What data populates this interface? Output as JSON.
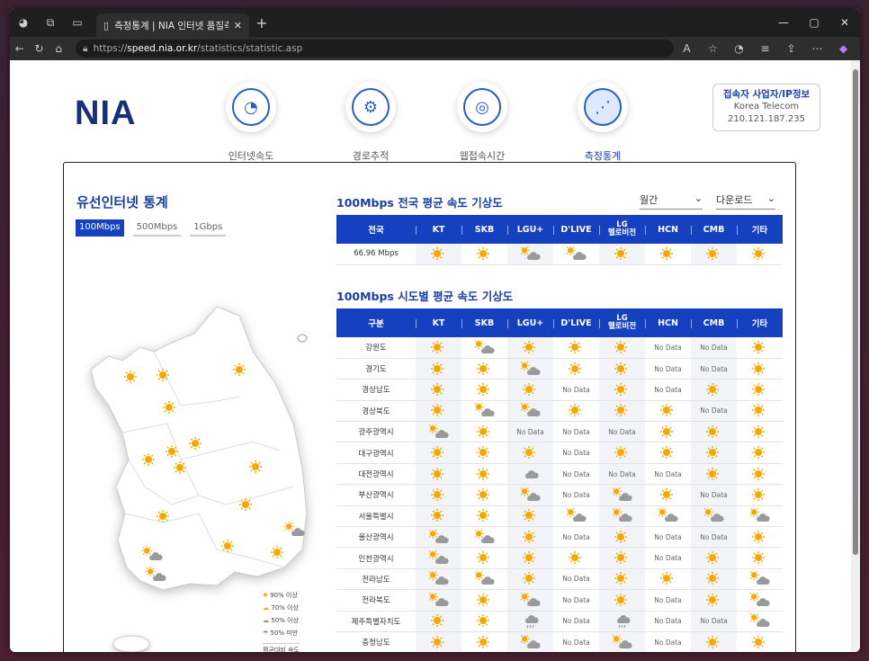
{
  "browser": {
    "tab_title": "측정통계 | NIA 인터넷 품질측정",
    "url_prefix": "https://",
    "url_host": "speed.nia.or.kr",
    "url_path": "/statistics/statistic.asp"
  },
  "header": {
    "logo": "NIA",
    "nav": [
      "인터넷속도",
      "경로추적",
      "웹접속시간",
      "측정통계"
    ],
    "user_title": "접속자 사업자/IP정보",
    "user_isp": "Korea Telecom",
    "user_ip": "210.121.187.235"
  },
  "left": {
    "title": "유선인터넷 통계",
    "speed_tabs": [
      "100Mbps",
      "500Mbps",
      "1Gbps"
    ],
    "legend": [
      "90% 이상",
      "70% 이상",
      "50% 이상",
      "50% 미만"
    ],
    "legend_caption": "평균대비 속도"
  },
  "national": {
    "title": "100Mbps 전국 평균 속도 기상도",
    "period": "월간",
    "download": "다운로드",
    "headers": [
      "전국",
      "KT",
      "SKB",
      "LGU+",
      "D'LIVE",
      "LG 헬로비전",
      "HCN",
      "CMB",
      "기타"
    ],
    "value": "66.96 Mbps",
    "weather": [
      "sun",
      "sun",
      "cloud",
      "cloud",
      "sun",
      "sun",
      "sun",
      "sun"
    ]
  },
  "regional": {
    "title": "100Mbps 시도별 평균 속도 기상도",
    "headers": [
      "구분",
      "KT",
      "SKB",
      "LGU+",
      "D'LIVE",
      "LG 헬로비전",
      "HCN",
      "CMB",
      "기타"
    ],
    "nodata": "No Data",
    "rows": [
      {
        "name": "강원도",
        "w": [
          "sun",
          "cloud",
          "sun",
          "sun",
          "sun",
          "nd",
          "nd",
          "sun"
        ]
      },
      {
        "name": "경기도",
        "w": [
          "sun",
          "sun",
          "cloud",
          "sun",
          "sun",
          "nd",
          "nd",
          "sun"
        ]
      },
      {
        "name": "경상남도",
        "w": [
          "sun",
          "sun",
          "sun",
          "nd",
          "sun",
          "nd",
          "sun",
          "sun"
        ]
      },
      {
        "name": "경상북도",
        "w": [
          "sun",
          "cloud",
          "cloud",
          "sun",
          "sun",
          "sun",
          "nd",
          "sun"
        ]
      },
      {
        "name": "광주광역시",
        "w": [
          "cloud",
          "sun",
          "nd",
          "nd",
          "nd",
          "sun",
          "sun",
          "sun"
        ]
      },
      {
        "name": "대구광역시",
        "w": [
          "sun",
          "sun",
          "sun",
          "nd",
          "sun",
          "sun",
          "sun",
          "sun"
        ]
      },
      {
        "name": "대전광역시",
        "w": [
          "sun",
          "sun",
          "grey",
          "nd",
          "nd",
          "nd",
          "sun",
          "sun"
        ]
      },
      {
        "name": "부산광역시",
        "w": [
          "sun",
          "sun",
          "cloud",
          "nd",
          "cloud",
          "sun",
          "nd",
          "sun"
        ]
      },
      {
        "name": "서울특별시",
        "w": [
          "sun",
          "sun",
          "sun",
          "cloud",
          "cloud",
          "cloud",
          "cloud",
          "cloud"
        ]
      },
      {
        "name": "울산광역시",
        "w": [
          "cloud",
          "cloud",
          "sun",
          "nd",
          "sun",
          "nd",
          "nd",
          "sun"
        ]
      },
      {
        "name": "인천광역시",
        "w": [
          "cloud",
          "sun",
          "sun",
          "sun",
          "sun",
          "nd",
          "sun",
          "sun"
        ]
      },
      {
        "name": "전라남도",
        "w": [
          "cloud",
          "cloud",
          "sun",
          "nd",
          "sun",
          "sun",
          "sun",
          "cloud"
        ]
      },
      {
        "name": "전라북도",
        "w": [
          "cloud",
          "sun",
          "cloud",
          "nd",
          "sun",
          "nd",
          "sun",
          "cloud"
        ]
      },
      {
        "name": "제주특별자치도",
        "w": [
          "sun",
          "sun",
          "rain",
          "nd",
          "rain",
          "nd",
          "nd",
          "cloud"
        ]
      },
      {
        "name": "충청남도",
        "w": [
          "sun",
          "sun",
          "cloud",
          "nd",
          "cloud",
          "nd",
          "sun",
          "sun"
        ]
      }
    ]
  }
}
